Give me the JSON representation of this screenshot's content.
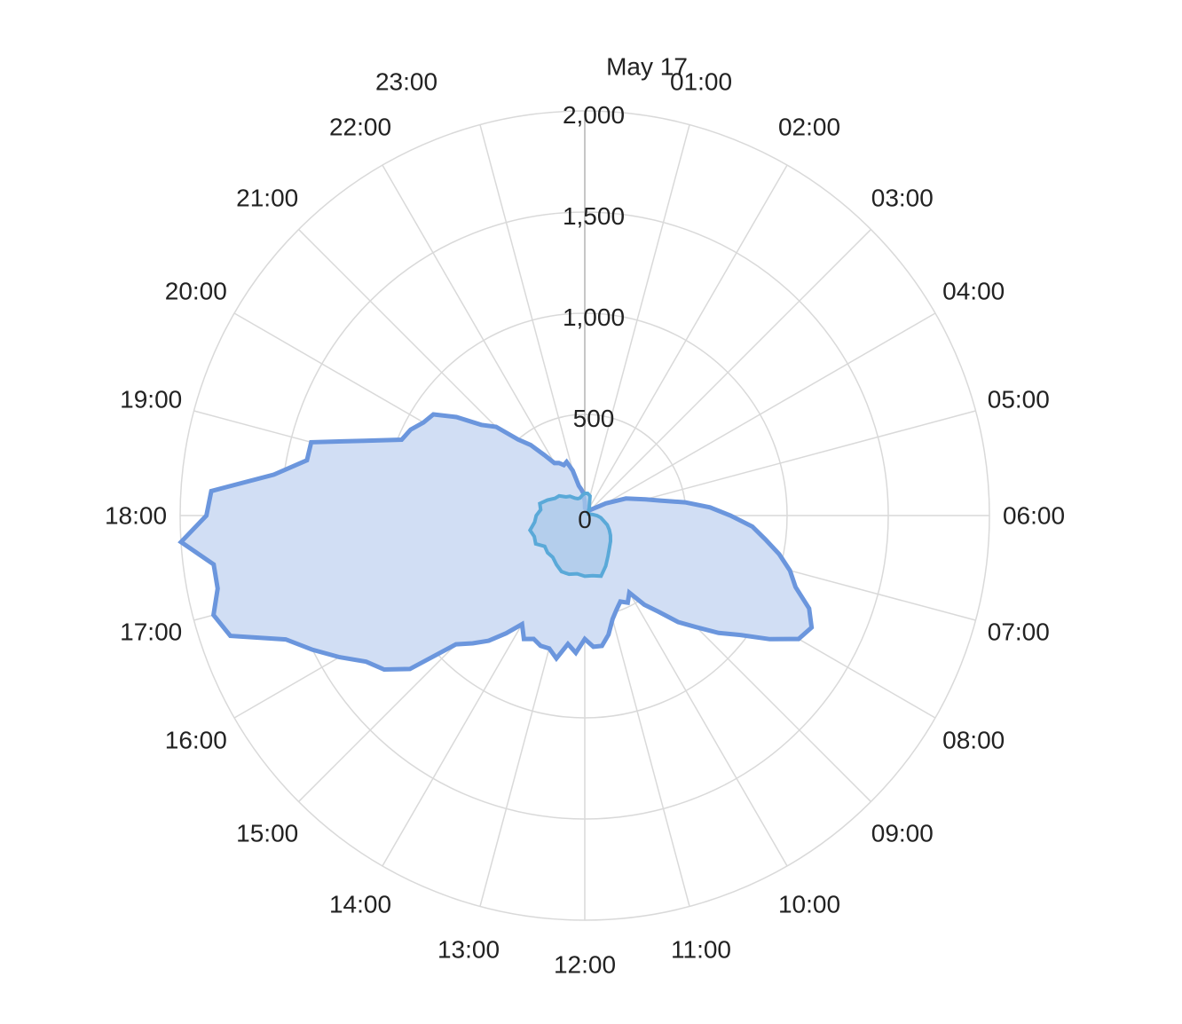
{
  "chart_data": {
    "type": "radar",
    "angular_axis": {
      "direction": "clockwise",
      "top_label": "May 17",
      "tick_labels": [
        "May 17",
        "01:00",
        "02:00",
        "03:00",
        "04:00",
        "05:00",
        "06:00",
        "07:00",
        "08:00",
        "09:00",
        "10:00",
        "11:00",
        "12:00",
        "13:00",
        "14:00",
        "15:00",
        "16:00",
        "17:00",
        "18:00",
        "19:00",
        "20:00",
        "21:00",
        "22:00",
        "23:00"
      ]
    },
    "radial_axis": {
      "range": [
        0,
        2000
      ],
      "tick_labels": [
        "0",
        "500",
        "1,000",
        "1,500",
        "2,000"
      ],
      "tick_values": [
        0,
        500,
        1000,
        1500,
        2000
      ]
    },
    "grid": true,
    "legend": "none",
    "series": [
      {
        "color": "#6b96dd",
        "fill": "#d1def4",
        "x_hours": [
          0,
          0.25,
          0.5,
          0.75,
          1,
          1.25,
          1.5,
          1.75,
          2,
          2.5,
          3,
          3.5,
          4,
          4.5,
          5,
          5.25,
          5.5,
          5.75,
          6,
          6.25,
          6.5,
          6.75,
          7,
          7.25,
          7.5,
          7.75,
          8,
          8.25,
          8.5,
          8.75,
          9,
          9.25,
          9.5,
          9.75,
          10,
          10.25,
          10.5,
          10.75,
          11,
          11.25,
          11.5,
          11.75,
          12,
          12.25,
          12.5,
          12.75,
          13,
          13.25,
          13.5,
          13.75,
          14,
          14.25,
          14.5,
          14.75,
          15,
          15.25,
          15.5,
          15.75,
          16,
          16.25,
          16.5,
          16.75,
          17,
          17.25,
          17.5,
          17.75,
          18,
          18.25,
          18.5,
          18.75,
          19,
          19.25,
          19.5,
          19.75,
          20,
          20.25,
          20.5,
          20.75,
          21,
          21.25,
          21.5,
          21.75,
          22,
          22.25,
          22.5,
          22.75,
          23,
          23.25,
          23.5,
          23.75
        ],
        "values": [
          70,
          30,
          40,
          35,
          30,
          25,
          25,
          25,
          25,
          30,
          40,
          60,
          120,
          220,
          310,
          380,
          500,
          620,
          720,
          830,
          900,
          980,
          1050,
          1100,
          1200,
          1250,
          1220,
          1100,
          970,
          880,
          780,
          700,
          600,
          530,
          440,
          480,
          460,
          490,
          530,
          600,
          650,
          650,
          610,
          680,
          640,
          720,
          680,
          680,
          660,
          680,
          620,
          700,
          780,
          840,
          900,
          1150,
          1250,
          1300,
          1400,
          1500,
          1600,
          1850,
          1900,
          1850,
          1850,
          2000,
          1870,
          1850,
          1550,
          1400,
          1400,
          1150,
          980,
          960,
          920,
          900,
          800,
          680,
          620,
          500,
          440,
          360,
          300,
          290,
          270,
          280,
          230,
          150,
          130,
          110
        ]
      },
      {
        "color": "#5aa9d8",
        "fill": "#a9c8ea",
        "x_hours": [
          0,
          0.5,
          1,
          1.5,
          2,
          2.5,
          3,
          3.5,
          4,
          4.5,
          5,
          5.5,
          6,
          6.5,
          7,
          7.5,
          8,
          8.5,
          9,
          9.5,
          10,
          10.5,
          11,
          11.5,
          12,
          12.5,
          13,
          13.5,
          14,
          14.5,
          15,
          15.5,
          16,
          16.5,
          17,
          17.5,
          18,
          18.5,
          19,
          19.5,
          20,
          20.5,
          21,
          21.5,
          22,
          22.5,
          23,
          23.5
        ],
        "values": [
          110,
          110,
          100,
          60,
          45,
          30,
          25,
          20,
          20,
          20,
          25,
          40,
          60,
          80,
          95,
          120,
          140,
          160,
          180,
          200,
          230,
          270,
          310,
          300,
          300,
          290,
          300,
          300,
          280,
          260,
          260,
          250,
          280,
          270,
          280,
          250,
          240,
          220,
          230,
          200,
          170,
          160,
          130,
          120,
          100,
          90,
          90,
          100
        ]
      }
    ]
  }
}
